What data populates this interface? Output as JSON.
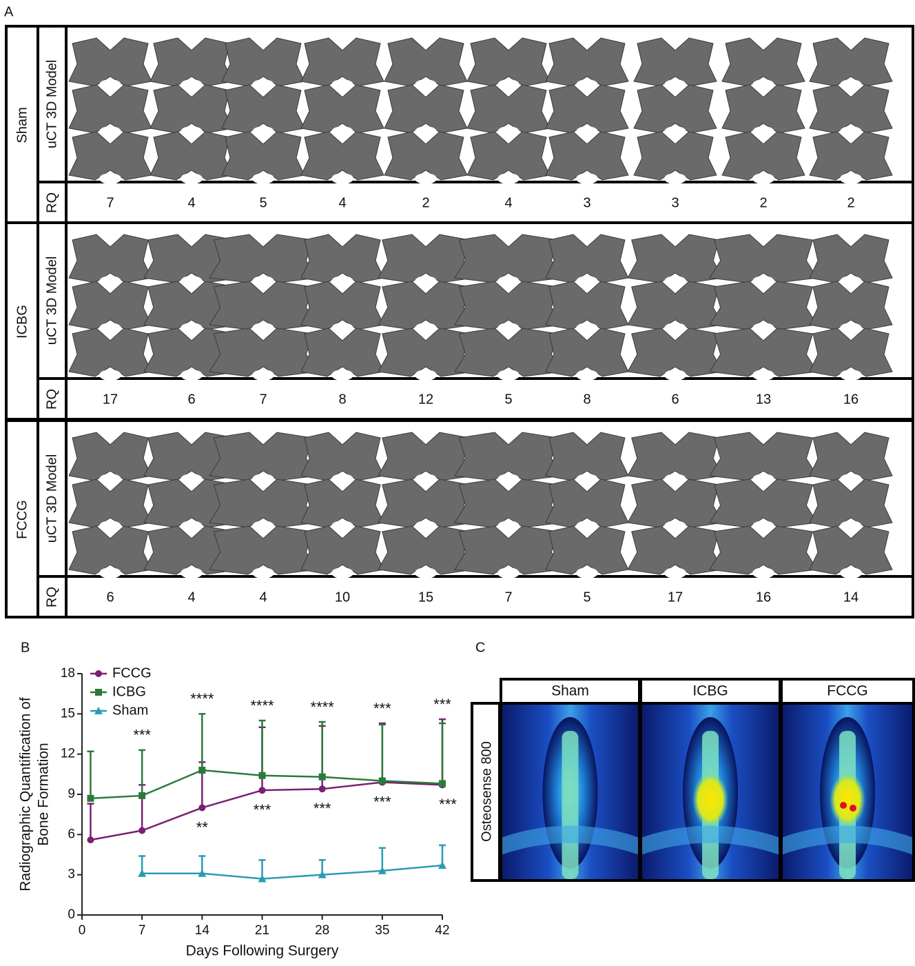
{
  "panel_a": {
    "label": "A",
    "groups": [
      {
        "name": "Sham",
        "model_label": "uCT 3D Model",
        "rq_label": "RQ",
        "rq": [
          7,
          4,
          5,
          4,
          2,
          4,
          3,
          3,
          2,
          2
        ]
      },
      {
        "name": "ICBG",
        "model_label": "uCT 3D Model",
        "rq_label": "RQ",
        "rq": [
          17,
          6,
          7,
          8,
          12,
          5,
          8,
          6,
          13,
          16
        ]
      },
      {
        "name": "FCCG",
        "model_label": "uCT 3D Model",
        "rq_label": "RQ",
        "rq": [
          6,
          4,
          4,
          10,
          15,
          7,
          5,
          17,
          16,
          14
        ]
      }
    ]
  },
  "chart_data": {
    "type": "line",
    "panel_label": "B",
    "ylabel": [
      "Radiographic Quantification of",
      "Bone Formation"
    ],
    "xlabel": "Days Following Surgery",
    "x": [
      1,
      7,
      14,
      21,
      28,
      35,
      42
    ],
    "series": [
      {
        "name": "FCCG",
        "color": "#7b2070",
        "marker": "circle",
        "values": [
          5.6,
          6.3,
          8.0,
          9.3,
          9.4,
          9.9,
          9.7
        ],
        "errors": [
          2.7,
          3.4,
          3.4,
          4.7,
          4.7,
          4.4,
          4.9
        ]
      },
      {
        "name": "ICBG",
        "color": "#2a7a3b",
        "marker": "square",
        "values": [
          8.7,
          8.9,
          10.8,
          10.4,
          10.3,
          10.0,
          9.8
        ],
        "errors": [
          3.5,
          3.4,
          4.2,
          4.1,
          4.1,
          4.2,
          4.5
        ]
      },
      {
        "name": "Sham",
        "color": "#2b9bb3",
        "marker": "triangle",
        "values": [
          null,
          3.1,
          3.1,
          2.7,
          3.0,
          3.3,
          3.7
        ],
        "errors": [
          null,
          1.3,
          1.3,
          1.4,
          1.1,
          1.7,
          1.5
        ]
      }
    ],
    "significance_above": [
      null,
      "***",
      "****",
      "****",
      "****",
      "***",
      "***"
    ],
    "significance_below": [
      null,
      null,
      "**",
      "***",
      "***",
      "***",
      "***"
    ],
    "xlim": [
      0,
      42
    ],
    "xticks": [
      0,
      7,
      14,
      21,
      28,
      35,
      42
    ],
    "ylim": [
      0,
      18
    ],
    "yticks": [
      0,
      3,
      6,
      9,
      12,
      15,
      18
    ],
    "legend": "top-left"
  },
  "panel_c": {
    "label": "C",
    "columns": [
      "Sham",
      "ICBG",
      "FCCG"
    ],
    "row_label": "Osteosense 800"
  }
}
